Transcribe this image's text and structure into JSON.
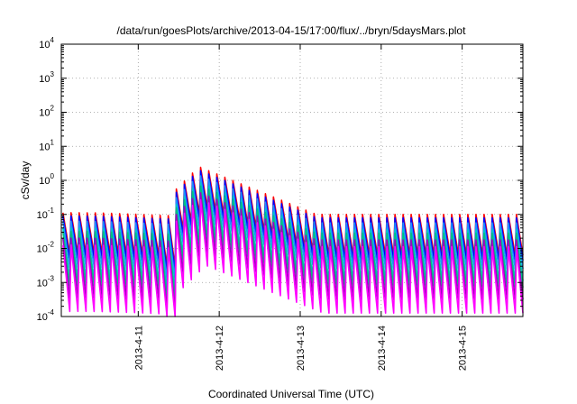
{
  "chart_data": {
    "type": "line",
    "title": "/data/run/goesPlots/archive/2013-04-15/17:00/flux/../bryn/5daysMars.plot",
    "xlabel": "Coordinated Universal Time (UTC)",
    "ylabel": "cSv/day",
    "yscale": "log",
    "ylim": [
      0.0001,
      10000
    ],
    "xlim": [
      0,
      5.0
    ],
    "grid": true,
    "x_ticks": [
      {
        "x": 1.0,
        "label": "2013-4-11"
      },
      {
        "x": 2.0,
        "label": "2013-4-12"
      },
      {
        "x": 3.0,
        "label": "2013-4-13"
      },
      {
        "x": 4.0,
        "label": "2013-4-14"
      },
      {
        "x": 5.0,
        "label": "2013-4-15"
      }
    ],
    "y_ticks": [
      {
        "exp": "-4",
        "base": "10"
      },
      {
        "exp": "-3",
        "base": "10"
      },
      {
        "exp": "-2",
        "base": "10"
      },
      {
        "exp": "-1",
        "base": "10"
      },
      {
        "exp": "0",
        "base": "10"
      },
      {
        "exp": "1",
        "base": "10"
      },
      {
        "exp": "2",
        "base": "10"
      },
      {
        "exp": "3",
        "base": "10"
      },
      {
        "exp": "4",
        "base": "10"
      }
    ],
    "series_style": [
      {
        "color": "#ff0000",
        "peak_offset": 0.0,
        "trough_offset": -1.0
      },
      {
        "color": "#0000ff",
        "peak_offset": -0.1,
        "trough_offset": -1.05
      },
      {
        "color": "#1e90ff",
        "peak_offset": -0.25,
        "trough_offset": -1.15
      },
      {
        "color": "#00c8c8",
        "peak_offset": -0.45,
        "trough_offset": -1.3
      },
      {
        "color": "#00c080",
        "peak_offset": -0.55,
        "trough_offset": -1.4
      },
      {
        "color": "#a000c0",
        "peak_offset": -0.75,
        "trough_offset": -1.55
      },
      {
        "color": "#ff00ff",
        "peak_offset": -0.95,
        "trough_offset": -1.75
      }
    ],
    "envelope": {
      "base_log10": -1.0,
      "event_start": 1.45,
      "event_peak": 1.75,
      "event_peak_log10": 0.4,
      "event_decay_end": 3.2,
      "period_days": 0.1
    }
  }
}
